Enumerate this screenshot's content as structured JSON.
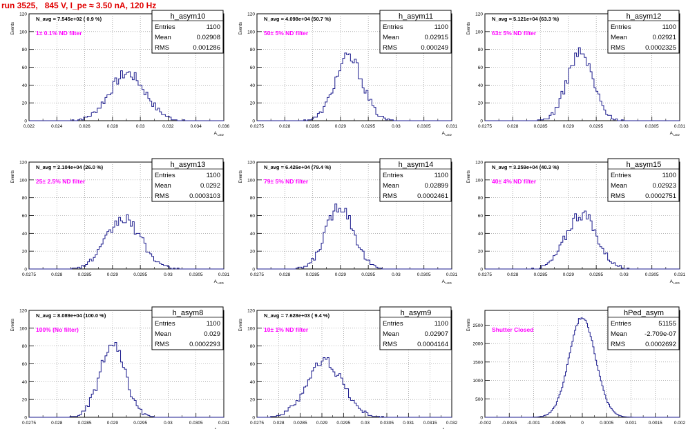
{
  "run_title": "run 3525,   845 V, I_pe ≈ 3.50 nA, 120 Hz",
  "chart_data": [
    {
      "type": "bar",
      "title": "h_asym10",
      "ylabel": "Events",
      "xlabel": "A",
      "xlabel_sub": "LED",
      "avg_text": "N_avg = 7.545e+02 ( 0.9 %)",
      "filter_text": "1± 0.1% ND filter",
      "stats": {
        "entries": "1100",
        "mean": "0.02908",
        "rms": "0.001286"
      },
      "stat_labels": [
        "Entries",
        "Mean",
        "RMS"
      ],
      "xlim": [
        0.022,
        0.036
      ],
      "ylim": [
        0,
        120
      ],
      "xticks": [
        "0.022",
        "0.024",
        "0.026",
        "0.028",
        "0.03",
        "0.032",
        "0.034",
        "0.036"
      ],
      "yticks": [
        "0",
        "20",
        "40",
        "60",
        "80",
        "100",
        "120"
      ],
      "mean": 0.02908,
      "rms": 0.001286,
      "peak": 53,
      "nbins": 100
    },
    {
      "type": "bar",
      "title": "h_asym11",
      "ylabel": "Events",
      "xlabel": "A",
      "xlabel_sub": "LED",
      "avg_text": "N_avg = 4.098e+04 (50.7 %)",
      "filter_text": "50± 5% ND filter",
      "stats": {
        "entries": "1100",
        "mean": "0.02915",
        "rms": "0.000249"
      },
      "stat_labels": [
        "Entries",
        "Mean",
        "RMS"
      ],
      "xlim": [
        0.0275,
        0.031
      ],
      "ylim": [
        0,
        120
      ],
      "xticks": [
        "0.0275",
        "0.028",
        "0.0285",
        "0.029",
        "0.0295",
        "0.03",
        "0.0305",
        "0.031"
      ],
      "yticks": [
        "0",
        "20",
        "40",
        "60",
        "80",
        "100",
        "120"
      ],
      "mean": 0.02915,
      "rms": 0.000249,
      "peak": 71,
      "nbins": 100
    },
    {
      "type": "bar",
      "title": "h_asym12",
      "ylabel": "Events",
      "xlabel": "A",
      "xlabel_sub": "LED",
      "avg_text": "N_avg = 5.121e+04 (63.3 %)",
      "filter_text": "63± 5% ND filter",
      "stats": {
        "entries": "1100",
        "mean": "0.02921",
        "rms": "0.0002325"
      },
      "stat_labels": [
        "Entries",
        "Mean",
        "RMS"
      ],
      "xlim": [
        0.0275,
        0.031
      ],
      "ylim": [
        0,
        120
      ],
      "xticks": [
        "0.0275",
        "0.028",
        "0.0285",
        "0.029",
        "0.0295",
        "0.03",
        "0.0305",
        "0.031"
      ],
      "yticks": [
        "0",
        "20",
        "40",
        "60",
        "80",
        "100",
        "120"
      ],
      "mean": 0.02921,
      "rms": 0.0002325,
      "peak": 76,
      "nbins": 100
    },
    {
      "type": "bar",
      "title": "h_asym13",
      "ylabel": "Events",
      "xlabel": "A",
      "xlabel_sub": "LED",
      "avg_text": "N_avg = 2.104e+04 (26.0 %)",
      "filter_text": "25± 2.5% ND filter",
      "stats": {
        "entries": "1100",
        "mean": "0.0292",
        "rms": "0.0003103"
      },
      "stat_labels": [
        "Entries",
        "Mean",
        "RMS"
      ],
      "xlim": [
        0.0275,
        0.031
      ],
      "ylim": [
        0,
        120
      ],
      "xticks": [
        "0.0275",
        "0.028",
        "0.0285",
        "0.029",
        "0.0295",
        "0.03",
        "0.0305",
        "0.031"
      ],
      "yticks": [
        "0",
        "20",
        "40",
        "60",
        "80",
        "100",
        "120"
      ],
      "mean": 0.0292,
      "rms": 0.0003103,
      "peak": 56,
      "nbins": 100
    },
    {
      "type": "bar",
      "title": "h_asym14",
      "ylabel": "Events",
      "xlabel": "A",
      "xlabel_sub": "LED",
      "avg_text": "N_avg = 6.426e+04 (79.4 %)",
      "filter_text": "79± 5% ND filter",
      "stats": {
        "entries": "1100",
        "mean": "0.02899",
        "rms": "0.0002461"
      },
      "stat_labels": [
        "Entries",
        "Mean",
        "RMS"
      ],
      "xlim": [
        0.0275,
        0.031
      ],
      "ylim": [
        0,
        120
      ],
      "xticks": [
        "0.0275",
        "0.028",
        "0.0285",
        "0.029",
        "0.0295",
        "0.03",
        "0.0305",
        "0.031"
      ],
      "yticks": [
        "0",
        "20",
        "40",
        "60",
        "80",
        "100",
        "120"
      ],
      "mean": 0.02899,
      "rms": 0.0002461,
      "peak": 72,
      "nbins": 100
    },
    {
      "type": "bar",
      "title": "h_asym15",
      "ylabel": "Events",
      "xlabel": "A",
      "xlabel_sub": "LED",
      "avg_text": "N_avg = 3.259e+04 (40.3 %)",
      "filter_text": "40± 4% ND filter",
      "stats": {
        "entries": "1100",
        "mean": "0.02923",
        "rms": "0.0002751"
      },
      "stat_labels": [
        "Entries",
        "Mean",
        "RMS"
      ],
      "xlim": [
        0.0275,
        0.031
      ],
      "ylim": [
        0,
        120
      ],
      "xticks": [
        "0.0275",
        "0.028",
        "0.0285",
        "0.029",
        "0.0295",
        "0.03",
        "0.0305",
        "0.031"
      ],
      "yticks": [
        "0",
        "20",
        "40",
        "60",
        "80",
        "100",
        "120"
      ],
      "mean": 0.02923,
      "rms": 0.0002751,
      "peak": 62,
      "nbins": 100
    },
    {
      "type": "bar",
      "title": "h_asym8",
      "ylabel": "Events",
      "xlabel": "A",
      "xlabel_sub": "LED",
      "avg_text": "N_avg = 8.089e+04 (100.0 %)",
      "filter_text": "100% (No filter)",
      "stats": {
        "entries": "1100",
        "mean": "0.029",
        "rms": "0.0002293"
      },
      "stat_labels": [
        "Entries",
        "Mean",
        "RMS"
      ],
      "xlim": [
        0.0275,
        0.031
      ],
      "ylim": [
        0,
        120
      ],
      "xticks": [
        "0.0275",
        "0.028",
        "0.0285",
        "0.029",
        "0.0295",
        "0.03",
        "0.0305",
        "0.031"
      ],
      "yticks": [
        "0",
        "20",
        "40",
        "60",
        "80",
        "100",
        "120"
      ],
      "mean": 0.029,
      "rms": 0.0002293,
      "peak": 80,
      "nbins": 100
    },
    {
      "type": "bar",
      "title": "h_asym9",
      "ylabel": "Events",
      "xlabel": "A",
      "xlabel_sub": "LED",
      "avg_text": "N_avg = 7.628e+03 ( 9.4 %)",
      "filter_text": "10± 1% ND filter",
      "stats": {
        "entries": "1100",
        "mean": "0.02907",
        "rms": "0.0004164"
      },
      "stat_labels": [
        "Entries",
        "Mean",
        "RMS"
      ],
      "xlim": [
        0.0275,
        0.032
      ],
      "ylim": [
        0,
        120
      ],
      "xticks": [
        "0.0275",
        "0.028",
        "0.0285",
        "0.029",
        "0.0295",
        "0.03",
        "0.0305",
        "0.031",
        "0.0315",
        "0.032"
      ],
      "yticks": [
        "0",
        "20",
        "40",
        "60",
        "80",
        "100",
        "120"
      ],
      "mean": 0.02907,
      "rms": 0.0004164,
      "peak": 63,
      "nbins": 100
    },
    {
      "type": "bar",
      "title": "hPed_asym",
      "ylabel": "Events",
      "xlabel": "",
      "xlabel_sub": "",
      "avg_text": "",
      "filter_text": "Shutter Closed",
      "stats": {
        "entries": "51155",
        "mean": "-2.709e-07",
        "rms": "0.0002692"
      },
      "stat_labels": [
        "Entries",
        "Mean",
        "RMS"
      ],
      "xlim": [
        -0.002,
        0.002
      ],
      "ylim": [
        0,
        2900
      ],
      "xticks": [
        "-0.002",
        "-0.0015",
        "-0.001",
        "-0.0005",
        "0",
        "0.0005",
        "0.001",
        "0.0015",
        "0.002"
      ],
      "yticks": [
        "0",
        "500",
        "1000",
        "1500",
        "2000",
        "2500"
      ],
      "mean": 0.0,
      "rms": 0.0002692,
      "peak": 2720,
      "nbins": 150
    }
  ],
  "colors": {
    "hist": "#1a1a8c",
    "filter_text": "#ff00ff",
    "title": "#e00000",
    "frame": "#000000",
    "grid": "#888888"
  }
}
